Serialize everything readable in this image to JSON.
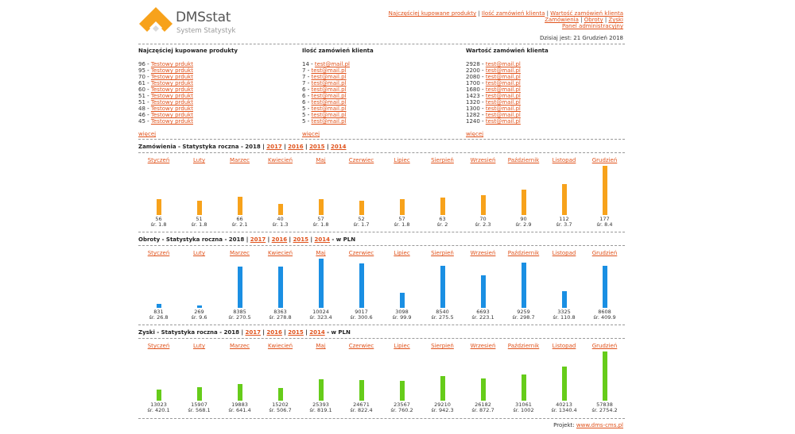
{
  "brand": {
    "name": "DMSstat",
    "subtitle": "System Statystyk",
    "colors": {
      "orange": "#f7a21b",
      "link": "#e0521b"
    }
  },
  "nav": {
    "links": [
      "Najczęściej kupowane produkty",
      "Ilość zamówień klienta",
      "Wartość zamówień klienta",
      "Zamówienia",
      "Obroty",
      "Zyski",
      "Panel administracyjny"
    ]
  },
  "today": "Dzisiaj jest: 21 Grudzień 2018",
  "top_products": {
    "title": "Najczęściej kupowane produkty",
    "rows": [
      {
        "count": "96",
        "name": "Testowy prdukt"
      },
      {
        "count": "95",
        "name": "Testowy prdukt"
      },
      {
        "count": "70",
        "name": "Testowy prdukt"
      },
      {
        "count": "61",
        "name": "Testowy prdukt"
      },
      {
        "count": "60",
        "name": "Testowy prdukt"
      },
      {
        "count": "51",
        "name": "Testowy prdukt"
      },
      {
        "count": "51",
        "name": "Testowy prdukt"
      },
      {
        "count": "48",
        "name": "Testowy prdukt"
      },
      {
        "count": "46",
        "name": "Testowy prdukt"
      },
      {
        "count": "45",
        "name": "Testowy prdukt"
      }
    ],
    "more": "więcej"
  },
  "orders_count": {
    "title": "Ilość zamówień klienta",
    "rows": [
      {
        "count": "14",
        "name": "test@mail.pl"
      },
      {
        "count": "7",
        "name": "test@mail.pl"
      },
      {
        "count": "7",
        "name": "test@mail.pl"
      },
      {
        "count": "7",
        "name": "test@mail.pl"
      },
      {
        "count": "6",
        "name": "test@mail.pl"
      },
      {
        "count": "6",
        "name": "test@mail.pl"
      },
      {
        "count": "6",
        "name": "test@mail.pl"
      },
      {
        "count": "5",
        "name": "test@mail.pl"
      },
      {
        "count": "5",
        "name": "test@mail.pl"
      },
      {
        "count": "5",
        "name": "test@mail.pl"
      }
    ],
    "more": "więcej"
  },
  "orders_value": {
    "title": "Wartość zamówień klienta",
    "rows": [
      {
        "count": "2928",
        "name": "test@mail.pl"
      },
      {
        "count": "2200",
        "name": "test@mail.pl"
      },
      {
        "count": "2080",
        "name": "test@mail.pl"
      },
      {
        "count": "1700",
        "name": "test@mail.pl"
      },
      {
        "count": "1680",
        "name": "test@mail.pl"
      },
      {
        "count": "1423",
        "name": "test@mail.pl"
      },
      {
        "count": "1320",
        "name": "test@mail.pl"
      },
      {
        "count": "1300",
        "name": "test@mail.pl"
      },
      {
        "count": "1282",
        "name": "test@mail.pl"
      },
      {
        "count": "1240",
        "name": "test@mail.pl"
      }
    ],
    "more": "więcej"
  },
  "months": [
    "Styczeń",
    "Luty",
    "Marzec",
    "Kwiecień",
    "Maj",
    "Czerwiec",
    "Lipiec",
    "Sierpień",
    "Wrzesień",
    "Październik",
    "Listopad",
    "Grudzień"
  ],
  "year_links": [
    "2017",
    "2016",
    "2015",
    "2014"
  ],
  "sections": [
    {
      "title": "Zamówienia - Statystyka roczna - 2018",
      "suffix": "",
      "color": "#f7a21b",
      "avg_prefix": "śr.",
      "values": [
        56,
        51,
        66,
        40,
        57,
        52,
        57,
        63,
        70,
        90,
        112,
        177
      ],
      "averages": [
        "1.8",
        "1.8",
        "2.1",
        "1.3",
        "1.8",
        "1.7",
        "1.8",
        "2",
        "2.3",
        "2.9",
        "3.7",
        "8.4"
      ]
    },
    {
      "title": "Obroty - Statystyka roczna - 2018",
      "suffix": " - w PLN",
      "color": "#1a8fe3",
      "avg_prefix": "śr.",
      "values": [
        831,
        269,
        8385,
        8363,
        10024,
        9017,
        3098,
        8540,
        6693,
        9259,
        3325,
        8608
      ],
      "averages": [
        "26.8",
        "9.6",
        "270.5",
        "278.8",
        "323.4",
        "300.6",
        "99.9",
        "275.5",
        "223.1",
        "298.7",
        "110.8",
        "409.9"
      ]
    },
    {
      "title": "Zyski - Statystyka roczna - 2018",
      "suffix": " - w PLN",
      "color": "#66cc1a",
      "avg_prefix": "śr.",
      "values": [
        13023,
        15907,
        19883,
        15202,
        25393,
        24671,
        23567,
        29210,
        26182,
        31061,
        40213,
        57838
      ],
      "averages": [
        "420.1",
        "568.1",
        "641.4",
        "506.7",
        "819.1",
        "822.4",
        "760.2",
        "942.3",
        "872.7",
        "1002",
        "1340.4",
        "2754.2"
      ]
    }
  ],
  "footer": {
    "label": "Projekt:",
    "link": "www.dms-cms.pl"
  }
}
